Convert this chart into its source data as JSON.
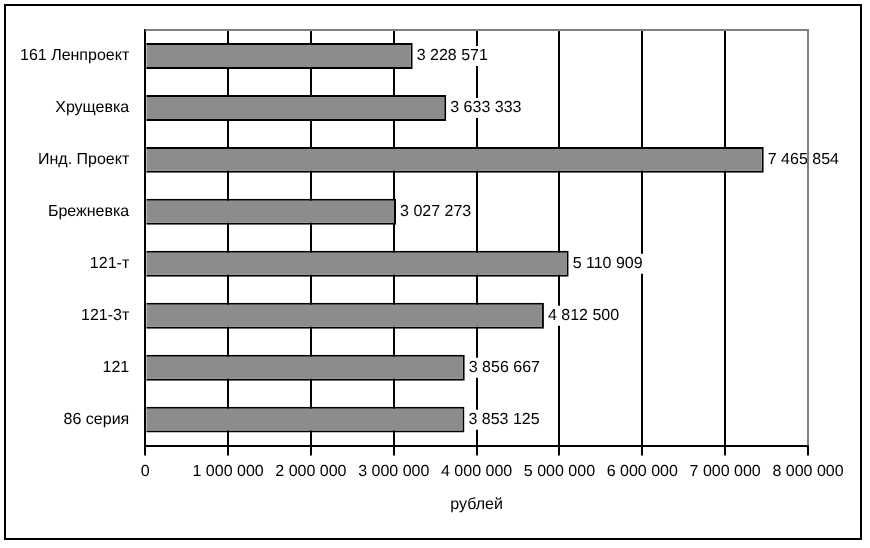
{
  "chart_data": {
    "type": "bar",
    "orientation": "horizontal",
    "xlabel": "рублей",
    "categories": [
      "161 Ленпроект",
      "Хрущевка",
      "Инд. Проект",
      "Брежневка",
      "121-т",
      "121-3т",
      "121",
      "86 серия"
    ],
    "values": [
      3228571,
      3633333,
      7465854,
      3027273,
      5110909,
      4812500,
      3856667,
      3853125
    ],
    "value_labels": [
      "3 228 571",
      "3 633 333",
      "7 465 854",
      "3 027 273",
      "5 110 909",
      "4 812 500",
      "3 856 667",
      "3 853 125"
    ],
    "color": "#8c8c8c",
    "xlim": [
      0,
      8000000
    ],
    "xticks": [
      0,
      {
        "value": 1000000,
        "label": "1 000 000"
      },
      {
        "value": 2000000,
        "label": "2 000 000"
      },
      {
        "value": 3000000,
        "label": "3 000 000"
      },
      {
        "value": 4000000,
        "label": "4 000 000"
      },
      {
        "value": 5000000,
        "label": "5 000 000"
      },
      {
        "value": 6000000,
        "label": "6 000 000"
      },
      {
        "value": 7000000,
        "label": "7 000 000"
      },
      {
        "value": 8000000,
        "label": "8 000 000"
      }
    ],
    "grid": "x",
    "legend": false
  }
}
